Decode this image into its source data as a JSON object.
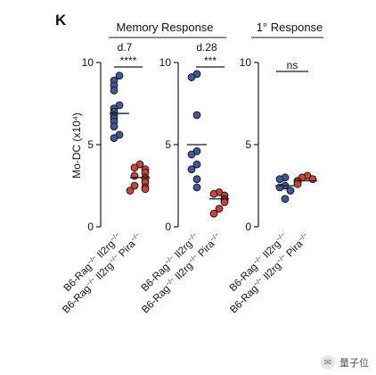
{
  "panel_letter": "K",
  "watermark": {
    "text": "量子位",
    "icon": "chat-bubble-icon"
  },
  "colors": {
    "wt": "#3f5a9c",
    "ko": "#d0433b",
    "stroke": "#1a1a1a"
  },
  "chart_data": [
    {
      "type": "scatter",
      "group_header": "Memory Response",
      "subtitle": "d.7",
      "ylabel": "Mo-DC (x10⁴)",
      "ylim": [
        0,
        10
      ],
      "yticks": [
        0,
        5,
        10
      ],
      "significance": "****",
      "categories": [
        "B6-Rag⁻/⁻Il2rg⁻/⁻",
        "B6-Rag⁻/⁻Il2rg⁻/⁻Pira⁻/⁻"
      ],
      "category_parts": [
        [
          "B6-Rag",
          "−/−",
          " Il2rg",
          "−/−"
        ],
        [
          "B6-Rag",
          "−/−",
          " Il2rg",
          "−/−",
          " Pira",
          "−/−"
        ]
      ],
      "series": [
        {
          "color_key": "wt",
          "mean": 6.9,
          "values": [
            9.2,
            8.9,
            8.6,
            8.3,
            7.4,
            7.2,
            7.0,
            6.8,
            6.6,
            6.4,
            6.1,
            5.6,
            5.4
          ]
        },
        {
          "color_key": "ko",
          "mean": 3.0,
          "values": [
            3.8,
            3.6,
            3.5,
            3.3,
            3.1,
            3.0,
            2.9,
            2.7,
            2.5,
            2.4,
            2.3,
            2.2
          ]
        }
      ]
    },
    {
      "type": "scatter",
      "subtitle": "d.28",
      "ylim": [
        0,
        10
      ],
      "yticks": [
        0,
        5,
        10
      ],
      "significance": "***",
      "categories": [
        "B6-Rag⁻/⁻Il2rg⁻/⁻",
        "B6-Rag⁻/⁻Il2rg⁻/⁻Pira⁻/⁻"
      ],
      "category_parts": [
        [
          "B6-Rag",
          "−/−",
          " Il2rg",
          "−/−"
        ],
        [
          "B6-Rag",
          "−/−",
          " Il2rg",
          "−/−",
          " Pira",
          "−/−"
        ]
      ],
      "series": [
        {
          "color_key": "wt",
          "mean": 5.0,
          "values": [
            9.3,
            9.1,
            6.8,
            4.6,
            4.4,
            3.8,
            3.5,
            2.9,
            2.4
          ]
        },
        {
          "color_key": "ko",
          "mean": 1.7,
          "values": [
            2.1,
            2.0,
            1.9,
            1.7,
            1.6,
            1.5,
            1.1,
            0.8
          ]
        }
      ]
    },
    {
      "type": "scatter",
      "group_header": "1° Response",
      "ylim": [
        0,
        10
      ],
      "yticks": [
        0,
        5,
        10
      ],
      "significance": "ns",
      "categories": [
        "B6-Rag⁻/⁻Il2rg⁻/⁻",
        "B6-Rag⁻/⁻Il2rg⁻/⁻Pira⁻/⁻"
      ],
      "category_parts": [
        [
          "B6-Rag",
          "−/−",
          " Il2rg",
          "−/−"
        ],
        [
          "B6-Rag",
          "−/−",
          " Il2rg",
          "−/−",
          " Pira",
          "−/−"
        ]
      ],
      "series": [
        {
          "color_key": "wt",
          "mean": 2.5,
          "values": [
            3.0,
            2.9,
            2.5,
            2.4,
            2.2,
            1.7
          ]
        },
        {
          "color_key": "ko",
          "mean": 2.8,
          "values": [
            3.1,
            3.0,
            2.9,
            2.8,
            2.7,
            2.6
          ]
        }
      ]
    }
  ]
}
